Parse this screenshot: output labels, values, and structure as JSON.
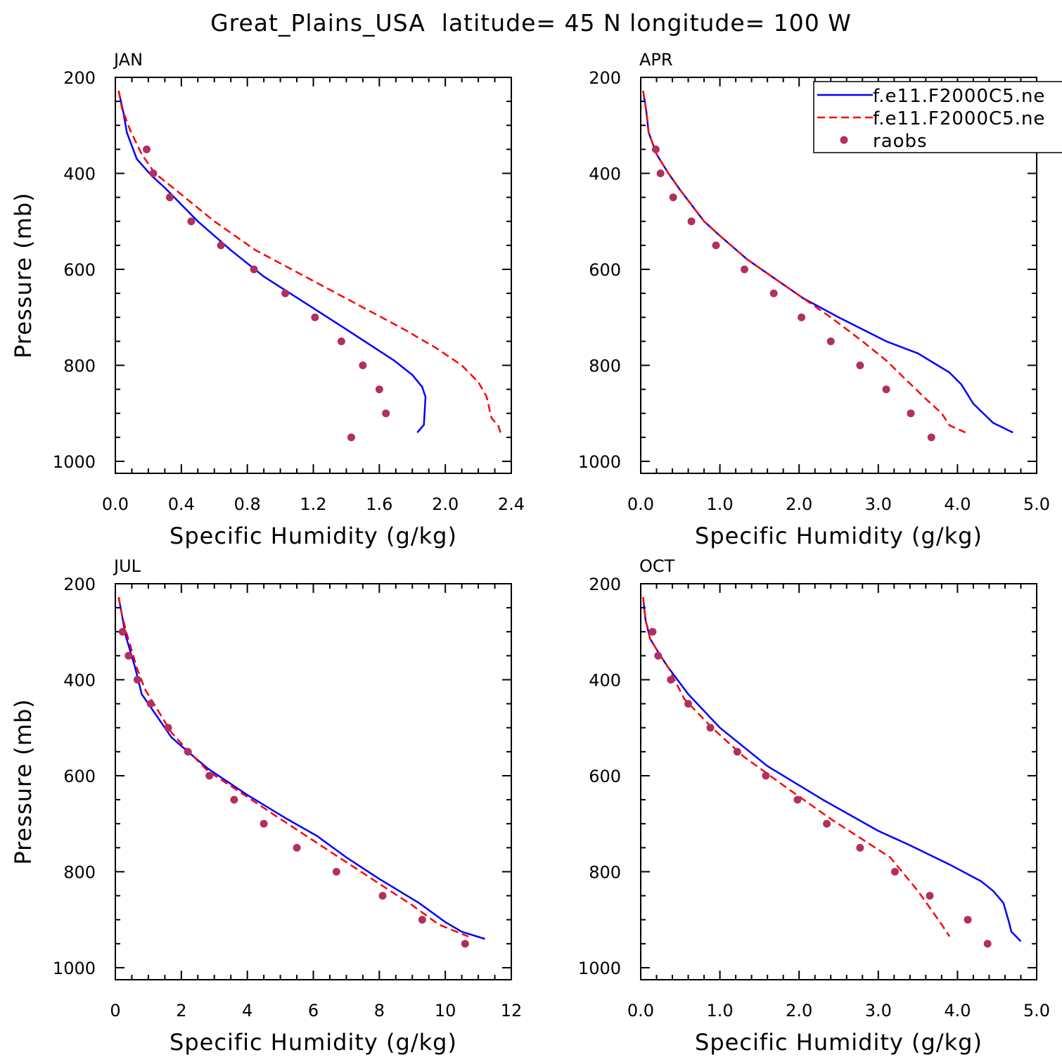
{
  "figure": {
    "title": "Great_Plains_USA  latitude= 45 N longitude= 100 W"
  },
  "legend": {
    "placement": "top-right of APR panel",
    "entries": [
      {
        "label": "f.e11.F2000C5.ne",
        "style": "solid",
        "color": "#0000ff"
      },
      {
        "label": "f.e11.F2000C5.ne",
        "style": "dashed",
        "color": "#ff0000"
      },
      {
        "label": "raobs",
        "style": "dot",
        "color": "#b03060"
      }
    ]
  },
  "colors": {
    "series1": "#0000ff",
    "series2": "#ff0000",
    "obs": "#b03060",
    "axis": "#000000"
  },
  "chart_data": [
    {
      "type": "line",
      "title": "JAN",
      "xlabel": "Specific Humidity (g/kg)",
      "ylabel": "Pressure (mb)",
      "xlim": [
        0,
        2.4
      ],
      "ylim": [
        200,
        1025
      ],
      "y_inverted": true,
      "xticks": [
        0,
        0.4,
        0.8,
        1.2,
        1.6,
        2.0,
        2.4
      ],
      "xtick_labels": [
        "0.0",
        "0.4",
        "0.8",
        "1.2",
        "1.6",
        "2.0",
        "2.4"
      ],
      "x_minor": 0.1,
      "yticks": [
        200,
        400,
        600,
        800,
        1000
      ],
      "ytick_labels": [
        "200",
        "400",
        "600",
        "800",
        "1000"
      ],
      "y_minor": 50,
      "series": [
        {
          "name": "f.e11.F2000C5.ne",
          "style": "solid",
          "points": [
            [
              0.02,
              228
            ],
            [
              0.05,
              275
            ],
            [
              0.07,
              315
            ],
            [
              0.13,
              370
            ],
            [
              0.22,
              405
            ],
            [
              0.3,
              430
            ],
            [
              0.5,
              500
            ],
            [
              0.7,
              560
            ],
            [
              0.9,
              615
            ],
            [
              1.15,
              670
            ],
            [
              1.4,
              725
            ],
            [
              1.69,
              790
            ],
            [
              1.8,
              820
            ],
            [
              1.86,
              845
            ],
            [
              1.88,
              866
            ],
            [
              1.87,
              924
            ],
            [
              1.83,
              940
            ]
          ]
        },
        {
          "name": "f.e11.F2000C5.ne",
          "style": "dashed",
          "points": [
            [
              0.02,
              228
            ],
            [
              0.04,
              265
            ],
            [
              0.09,
              310
            ],
            [
              0.16,
              360
            ],
            [
              0.24,
              400
            ],
            [
              0.35,
              430
            ],
            [
              0.6,
              500
            ],
            [
              0.85,
              560
            ],
            [
              1.15,
              615
            ],
            [
              1.45,
              670
            ],
            [
              1.75,
              725
            ],
            [
              1.95,
              765
            ],
            [
              2.1,
              800
            ],
            [
              2.2,
              835
            ],
            [
              2.25,
              865
            ],
            [
              2.28,
              910
            ],
            [
              2.32,
              925
            ],
            [
              2.34,
              945
            ]
          ]
        },
        {
          "name": "raobs",
          "style": "dot",
          "points": [
            [
              0.19,
              350
            ],
            [
              0.23,
              400
            ],
            [
              0.33,
              450
            ],
            [
              0.46,
              500
            ],
            [
              0.64,
              550
            ],
            [
              0.84,
              600
            ],
            [
              1.03,
              650
            ],
            [
              1.21,
              700
            ],
            [
              1.37,
              750
            ],
            [
              1.5,
              800
            ],
            [
              1.6,
              850
            ],
            [
              1.64,
              900
            ],
            [
              1.43,
              950
            ]
          ]
        }
      ]
    },
    {
      "type": "line",
      "title": "APR",
      "xlabel": "Specific Humidity (g/kg)",
      "ylabel": "",
      "xlim": [
        0,
        5.0
      ],
      "ylim": [
        200,
        1025
      ],
      "y_inverted": true,
      "xticks": [
        0,
        1,
        2,
        3,
        4,
        5
      ],
      "xtick_labels": [
        "0.0",
        "1.0",
        "2.0",
        "3.0",
        "4.0",
        "5.0"
      ],
      "x_minor": 0.2,
      "yticks": [
        200,
        400,
        600,
        800,
        1000
      ],
      "ytick_labels": [
        "200",
        "400",
        "600",
        "800",
        "1000"
      ],
      "y_minor": 50,
      "series": [
        {
          "name": "f.e11.F2000C5.ne",
          "style": "solid",
          "points": [
            [
              0.03,
              228
            ],
            [
              0.07,
              270
            ],
            [
              0.1,
              315
            ],
            [
              0.2,
              360
            ],
            [
              0.35,
              400
            ],
            [
              0.5,
              435
            ],
            [
              0.8,
              500
            ],
            [
              1.0,
              530
            ],
            [
              1.35,
              580
            ],
            [
              1.7,
              620
            ],
            [
              2.05,
              660
            ],
            [
              2.5,
              700
            ],
            [
              3.1,
              750
            ],
            [
              3.5,
              775
            ],
            [
              3.75,
              800
            ],
            [
              3.9,
              815
            ],
            [
              4.05,
              840
            ],
            [
              4.2,
              880
            ],
            [
              4.45,
              920
            ],
            [
              4.7,
              940
            ]
          ]
        },
        {
          "name": "f.e11.F2000C5.ne",
          "style": "dashed",
          "points": [
            [
              0.03,
              228
            ],
            [
              0.07,
              270
            ],
            [
              0.1,
              315
            ],
            [
              0.2,
              360
            ],
            [
              0.35,
              400
            ],
            [
              0.5,
              435
            ],
            [
              0.8,
              500
            ],
            [
              1.0,
              530
            ],
            [
              1.35,
              580
            ],
            [
              1.7,
              620
            ],
            [
              2.05,
              660
            ],
            [
              2.4,
              700
            ],
            [
              2.8,
              750
            ],
            [
              3.1,
              790
            ],
            [
              3.35,
              830
            ],
            [
              3.6,
              870
            ],
            [
              3.8,
              900
            ],
            [
              3.9,
              925
            ],
            [
              4.1,
              940
            ]
          ]
        },
        {
          "name": "raobs",
          "style": "dot",
          "points": [
            [
              0.19,
              350
            ],
            [
              0.25,
              400
            ],
            [
              0.41,
              450
            ],
            [
              0.64,
              500
            ],
            [
              0.95,
              550
            ],
            [
              1.31,
              600
            ],
            [
              1.68,
              650
            ],
            [
              2.03,
              700
            ],
            [
              2.4,
              750
            ],
            [
              2.77,
              800
            ],
            [
              3.1,
              850
            ],
            [
              3.41,
              900
            ],
            [
              3.67,
              950
            ]
          ]
        }
      ]
    },
    {
      "type": "line",
      "title": "JUL",
      "xlabel": "Specific Humidity (g/kg)",
      "ylabel": "Pressure (mb)",
      "xlim": [
        0,
        12
      ],
      "ylim": [
        200,
        1025
      ],
      "y_inverted": true,
      "xticks": [
        0,
        2,
        4,
        6,
        8,
        10,
        12
      ],
      "xtick_labels": [
        "0",
        "2",
        "4",
        "6",
        "8",
        "10",
        "12"
      ],
      "x_minor": 0.5,
      "yticks": [
        200,
        400,
        600,
        800,
        1000
      ],
      "ytick_labels": [
        "200",
        "400",
        "600",
        "800",
        "1000"
      ],
      "y_minor": 50,
      "series": [
        {
          "name": "f.e11.F2000C5.ne",
          "style": "solid",
          "points": [
            [
              0.1,
              228
            ],
            [
              0.2,
              265
            ],
            [
              0.3,
              305
            ],
            [
              0.45,
              340
            ],
            [
              0.6,
              375
            ],
            [
              0.8,
              430
            ],
            [
              1.2,
              470
            ],
            [
              1.7,
              520
            ],
            [
              2.2,
              550
            ],
            [
              2.8,
              585
            ],
            [
              4.0,
              640
            ],
            [
              5.2,
              690
            ],
            [
              6.1,
              725
            ],
            [
              7.0,
              770
            ],
            [
              8.0,
              815
            ],
            [
              9.2,
              865
            ],
            [
              10.0,
              905
            ],
            [
              10.5,
              925
            ],
            [
              11.2,
              940
            ]
          ]
        },
        {
          "name": "f.e11.F2000C5.ne",
          "style": "dashed",
          "points": [
            [
              0.1,
              228
            ],
            [
              0.2,
              265
            ],
            [
              0.35,
              305
            ],
            [
              0.5,
              340
            ],
            [
              0.65,
              375
            ],
            [
              0.9,
              420
            ],
            [
              1.3,
              465
            ],
            [
              1.7,
              510
            ],
            [
              2.3,
              555
            ],
            [
              2.8,
              590
            ],
            [
              3.8,
              635
            ],
            [
              5.0,
              690
            ],
            [
              6.0,
              735
            ],
            [
              7.0,
              780
            ],
            [
              8.0,
              825
            ],
            [
              9.0,
              870
            ],
            [
              9.8,
              910
            ],
            [
              10.7,
              935
            ]
          ]
        },
        {
          "name": "raobs",
          "style": "dot",
          "points": [
            [
              0.22,
              300
            ],
            [
              0.4,
              350
            ],
            [
              0.67,
              400
            ],
            [
              1.07,
              450
            ],
            [
              1.6,
              500
            ],
            [
              2.2,
              550
            ],
            [
              2.85,
              600
            ],
            [
              3.6,
              650
            ],
            [
              4.5,
              700
            ],
            [
              5.5,
              750
            ],
            [
              6.7,
              800
            ],
            [
              8.1,
              850
            ],
            [
              9.3,
              900
            ],
            [
              10.6,
              950
            ]
          ]
        }
      ]
    },
    {
      "type": "line",
      "title": "OCT",
      "xlabel": "Specific Humidity (g/kg)",
      "ylabel": "",
      "xlim": [
        0,
        5.0
      ],
      "ylim": [
        200,
        1025
      ],
      "y_inverted": true,
      "xticks": [
        0,
        1,
        2,
        3,
        4,
        5
      ],
      "xtick_labels": [
        "0.0",
        "1.0",
        "2.0",
        "3.0",
        "4.0",
        "5.0"
      ],
      "x_minor": 0.2,
      "yticks": [
        200,
        400,
        600,
        800,
        1000
      ],
      "ytick_labels": [
        "200",
        "400",
        "600",
        "800",
        "1000"
      ],
      "y_minor": 50,
      "series": [
        {
          "name": "f.e11.F2000C5.ne",
          "style": "solid",
          "points": [
            [
              0.03,
              228
            ],
            [
              0.06,
              275
            ],
            [
              0.12,
              315
            ],
            [
              0.25,
              350
            ],
            [
              0.35,
              375
            ],
            [
              0.6,
              430
            ],
            [
              1.0,
              500
            ],
            [
              1.6,
              580
            ],
            [
              2.3,
              650
            ],
            [
              3.0,
              715
            ],
            [
              3.4,
              745
            ],
            [
              3.9,
              785
            ],
            [
              4.3,
              820
            ],
            [
              4.45,
              840
            ],
            [
              4.58,
              865
            ],
            [
              4.65,
              905
            ],
            [
              4.68,
              925
            ],
            [
              4.8,
              945
            ]
          ]
        },
        {
          "name": "f.e11.F2000C5.ne",
          "style": "dashed",
          "points": [
            [
              0.03,
              228
            ],
            [
              0.06,
              275
            ],
            [
              0.12,
              315
            ],
            [
              0.25,
              350
            ],
            [
              0.35,
              375
            ],
            [
              0.55,
              440
            ],
            [
              0.9,
              500
            ],
            [
              1.3,
              560
            ],
            [
              1.8,
              620
            ],
            [
              2.4,
              690
            ],
            [
              3.15,
              770
            ],
            [
              3.3,
              800
            ],
            [
              3.5,
              840
            ],
            [
              3.65,
              875
            ],
            [
              3.8,
              910
            ],
            [
              3.9,
              935
            ]
          ]
        },
        {
          "name": "raobs",
          "style": "dot",
          "points": [
            [
              0.15,
              300
            ],
            [
              0.22,
              350
            ],
            [
              0.38,
              400
            ],
            [
              0.6,
              450
            ],
            [
              0.88,
              500
            ],
            [
              1.22,
              550
            ],
            [
              1.58,
              600
            ],
            [
              1.98,
              650
            ],
            [
              2.35,
              700
            ],
            [
              2.77,
              750
            ],
            [
              3.21,
              800
            ],
            [
              3.65,
              850
            ],
            [
              4.13,
              900
            ],
            [
              4.38,
              950
            ]
          ]
        }
      ]
    }
  ]
}
